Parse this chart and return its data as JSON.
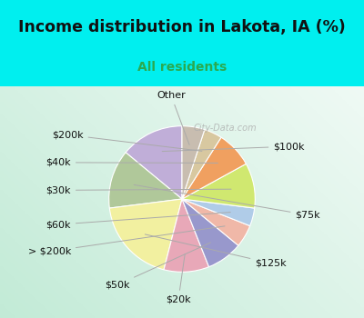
{
  "title": "Income distribution in Lakota, IA (%)",
  "subtitle": "All residents",
  "bg_color": "#00efef",
  "chart_bg_top": "#e8f5f0",
  "chart_bg_bottom": "#d0ece4",
  "labels": [
    "$100k",
    "$75k",
    "$125k",
    "$20k",
    "$50k",
    "> $200k",
    "$60k",
    "$30k",
    "$40k",
    "$200k",
    "Other"
  ],
  "values": [
    14,
    13,
    19,
    10,
    8,
    5,
    4,
    10,
    8,
    4,
    5
  ],
  "colors": [
    "#c0aed8",
    "#b0c89a",
    "#f2f0a0",
    "#e8a8b8",
    "#9898cc",
    "#f0b8a8",
    "#b0cce8",
    "#d0e870",
    "#f0a060",
    "#d8c8a0",
    "#c8bdb0"
  ],
  "startangle": 90,
  "label_fontsize": 8,
  "title_fontsize": 12.5,
  "subtitle_fontsize": 10,
  "title_color": "#111111",
  "subtitle_color": "#2aaa50",
  "watermark": "City-Data.com"
}
